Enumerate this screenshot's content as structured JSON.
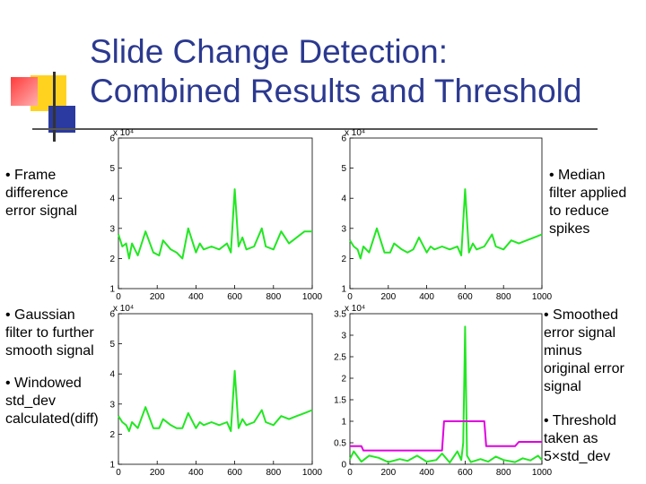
{
  "slide": {
    "title_line1": "Slide Change Detection:",
    "title_line2": "Combined Results and Threshold"
  },
  "notes": {
    "top_left": [
      "• Frame",
      "difference",
      "error signal"
    ],
    "top_right": [
      "• Median",
      "filter applied",
      "to reduce",
      "spikes"
    ],
    "bottom_left_a": [
      "• Gaussian",
      "filter to further",
      "smooth signal"
    ],
    "bottom_left_b": [
      "• Windowed",
      "std_dev",
      "calculated(diff)"
    ],
    "bottom_right_a": [
      "• Smoothed",
      "error signal",
      "minus",
      "original error",
      "signal"
    ],
    "bottom_right_b": [
      "• Threshold",
      "taken as",
      "5×std_dev"
    ]
  },
  "colors": {
    "title": "#2b3990",
    "series": "#22e722",
    "threshold": "#e000e0"
  },
  "chart_data": [
    {
      "type": "line",
      "id": "frame-difference",
      "xlim": [
        0,
        1000
      ],
      "ylim": [
        1,
        6
      ],
      "exponent": "x 10⁴",
      "xticks": [
        0,
        200,
        400,
        600,
        800,
        1000
      ],
      "yticks": [
        1,
        2,
        3,
        4,
        5,
        6
      ],
      "x": [
        0,
        20,
        40,
        55,
        70,
        100,
        140,
        180,
        210,
        230,
        270,
        300,
        330,
        360,
        400,
        420,
        440,
        480,
        520,
        560,
        580,
        600,
        620,
        640,
        660,
        700,
        740,
        760,
        800,
        840,
        880,
        920,
        960,
        1000
      ],
      "series": [
        {
          "values": [
            2.8,
            2.4,
            2.5,
            2.0,
            2.5,
            2.1,
            2.9,
            2.2,
            2.1,
            2.6,
            2.3,
            2.2,
            2.0,
            3.0,
            2.2,
            2.5,
            2.3,
            2.4,
            2.3,
            2.5,
            2.2,
            4.3,
            2.4,
            2.7,
            2.3,
            2.4,
            3.0,
            2.4,
            2.3,
            2.9,
            2.5,
            2.7,
            2.9,
            2.9
          ]
        }
      ]
    },
    {
      "type": "line",
      "id": "median-filtered",
      "xlim": [
        0,
        1000
      ],
      "ylim": [
        1,
        6
      ],
      "exponent": "x 10⁴",
      "xticks": [
        0,
        200,
        400,
        600,
        800,
        1000
      ],
      "yticks": [
        1,
        2,
        3,
        4,
        5,
        6
      ],
      "x": [
        0,
        20,
        40,
        55,
        70,
        100,
        140,
        180,
        210,
        230,
        270,
        300,
        330,
        360,
        400,
        420,
        440,
        480,
        520,
        560,
        580,
        600,
        620,
        640,
        660,
        700,
        740,
        760,
        800,
        840,
        880,
        920,
        960,
        1000
      ],
      "series": [
        {
          "values": [
            2.6,
            2.4,
            2.3,
            2.0,
            2.4,
            2.2,
            3.0,
            2.2,
            2.2,
            2.5,
            2.3,
            2.2,
            2.3,
            2.7,
            2.2,
            2.4,
            2.3,
            2.4,
            2.3,
            2.4,
            2.1,
            4.3,
            2.2,
            2.5,
            2.3,
            2.4,
            2.8,
            2.4,
            2.3,
            2.6,
            2.5,
            2.6,
            2.7,
            2.8
          ]
        }
      ]
    },
    {
      "type": "line",
      "id": "gaussian-smoothed",
      "xlim": [
        0,
        1000
      ],
      "ylim": [
        1,
        6
      ],
      "exponent": "x 10⁴",
      "xticks": [
        0,
        200,
        400,
        600,
        800,
        1000
      ],
      "yticks": [
        1,
        2,
        3,
        4,
        5,
        6
      ],
      "x": [
        0,
        20,
        40,
        55,
        70,
        100,
        140,
        180,
        210,
        230,
        270,
        300,
        330,
        360,
        400,
        420,
        440,
        480,
        520,
        560,
        580,
        600,
        620,
        640,
        660,
        700,
        740,
        760,
        800,
        840,
        880,
        920,
        960,
        1000
      ],
      "series": [
        {
          "values": [
            2.6,
            2.4,
            2.3,
            2.1,
            2.4,
            2.2,
            2.9,
            2.2,
            2.2,
            2.5,
            2.3,
            2.2,
            2.2,
            2.7,
            2.2,
            2.4,
            2.3,
            2.4,
            2.3,
            2.4,
            2.1,
            4.1,
            2.2,
            2.5,
            2.3,
            2.4,
            2.8,
            2.4,
            2.3,
            2.6,
            2.5,
            2.6,
            2.7,
            2.8
          ]
        }
      ]
    },
    {
      "type": "line",
      "id": "difference-and-threshold",
      "xlim": [
        0,
        1000
      ],
      "ylim": [
        0,
        3.5
      ],
      "exponent": "x 10⁴",
      "xticks": [
        0,
        200,
        400,
        600,
        800,
        1000
      ],
      "yticks": [
        0,
        0.5,
        1,
        1.5,
        2,
        2.5,
        3,
        3.5
      ],
      "x": [
        0,
        20,
        60,
        100,
        150,
        200,
        260,
        300,
        350,
        400,
        450,
        480,
        520,
        560,
        580,
        590,
        600,
        610,
        630,
        680,
        720,
        760,
        800,
        860,
        900,
        940,
        980,
        1000
      ],
      "series": [
        {
          "values": [
            0.12,
            0.3,
            0.06,
            0.2,
            0.15,
            0.05,
            0.12,
            0.08,
            0.2,
            0.06,
            0.1,
            0.25,
            0.04,
            0.3,
            0.1,
            0.5,
            3.2,
            0.2,
            0.05,
            0.12,
            0.06,
            0.18,
            0.1,
            0.05,
            0.14,
            0.09,
            0.2,
            0.1
          ]
        },
        {
          "name": "threshold",
          "x": [
            0,
            60,
            70,
            200,
            350,
            450,
            480,
            490,
            700,
            710,
            800,
            860,
            880,
            1000
          ],
          "values": [
            0.42,
            0.42,
            0.32,
            0.32,
            0.32,
            0.32,
            0.32,
            1.0,
            1.0,
            0.42,
            0.42,
            0.42,
            0.52,
            0.52
          ]
        }
      ]
    }
  ]
}
